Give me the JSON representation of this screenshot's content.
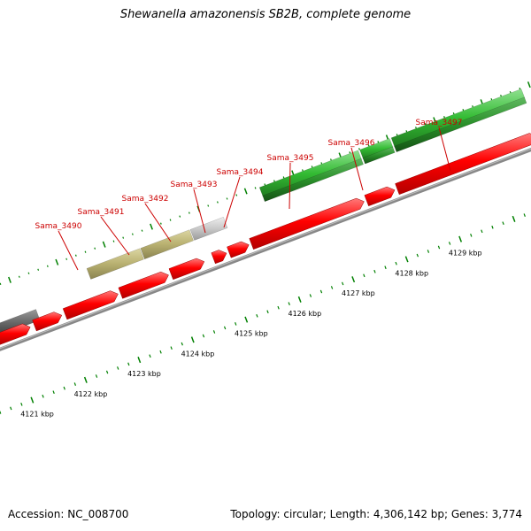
{
  "title": "Shewanella amazonensis SB2B, complete genome",
  "accession": "Accession: NC_008700",
  "summary": "Topology: circular; Length: 4,306,142 bp; Genes: 3,774",
  "colors": {
    "cds": "#ff0000",
    "backbone": "#888888",
    "tick_mark": "#008000",
    "gene_label": "#cc0000",
    "olive_feature": "#b8b070",
    "grey_feature": "#c8c8c8",
    "dark_feature": "#666666",
    "green_feature": "#33bb33"
  },
  "gene_labels": [
    "Sama_3490",
    "Sama_3491",
    "Sama_3492",
    "Sama_3493",
    "Sama_3494",
    "Sama_3495",
    "Sama_3496",
    "Sama_3497"
  ],
  "scale_labels": [
    "4121 kbp",
    "4122 kbp",
    "4123 kbp",
    "4124 kbp",
    "4125 kbp",
    "4126 kbp",
    "4127 kbp",
    "4128 kbp",
    "4129 kbp"
  ]
}
